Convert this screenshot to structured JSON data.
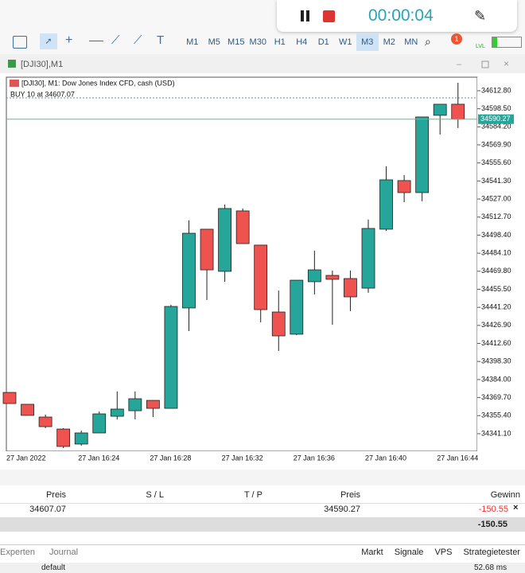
{
  "recorder": {
    "timer": "00:00:04"
  },
  "toolbar": {
    "timeframes": [
      "M1",
      "M5",
      "M15",
      "M30",
      "H1",
      "H4",
      "D1",
      "W1",
      "M3",
      "M2",
      "MN"
    ],
    "active_timeframe": "M3",
    "notifications": 1,
    "level": "LVL"
  },
  "window": {
    "title": "[DJI30],M1"
  },
  "chart_data": {
    "type": "candlestick",
    "info_line": "[DJI30], M1:  Dow Jones Index CFD, cash (USD)",
    "trade_label": "BUY 10 at 34607.07",
    "categories": [
      "27 Jan 2022",
      null,
      null,
      null,
      "27 Jan 16:24",
      null,
      null,
      null,
      "27 Jan 16:28",
      null,
      null,
      null,
      "27 Jan 16:32",
      null,
      null,
      null,
      "27 Jan 16:36",
      null,
      null,
      null,
      "27 Jan 16:40",
      null,
      null,
      null,
      "27 Jan 16:44",
      null
    ],
    "open": [
      34373.8,
      34364.4,
      34354.3,
      34344.8,
      34332.9,
      34341.7,
      34354.9,
      34359.3,
      34367.5,
      34361.2,
      34440.7,
      34503.1,
      34469.7,
      34517.6,
      34490.5,
      34437.5,
      34419.9,
      34461.5,
      34466.5,
      34464.0,
      34456.4,
      34503.1,
      34541.6,
      34532.1,
      34593.3,
      34602.1
    ],
    "high": [
      34373.8,
      34364.4,
      34356.2,
      34345.5,
      34343.6,
      34358.7,
      34374.5,
      34374.5,
      34367.5,
      34443.2,
      34510.0,
      34503.1,
      34522.6,
      34519.5,
      34490.5,
      34454.5,
      34462.7,
      34486.1,
      34470.3,
      34470.3,
      34510.7,
      34552.9,
      34546.0,
      34592.0,
      34602.1,
      34619.1
    ],
    "low": [
      34365.0,
      34355.6,
      34345.5,
      34329.7,
      34331.6,
      34341.7,
      34352.4,
      34352.4,
      34354.3,
      34361.2,
      34422.4,
      34447.0,
      34461.5,
      34491.7,
      34429.3,
      34406.6,
      34419.2,
      34451.4,
      34427.4,
      34438.2,
      34452.7,
      34501.8,
      34524.5,
      34525.2,
      34578.1,
      34583.2
    ],
    "close": [
      34365.0,
      34355.6,
      34346.7,
      34331.0,
      34341.7,
      34356.8,
      34360.6,
      34368.8,
      34361.2,
      34441.9,
      34499.9,
      34470.9,
      34519.5,
      34491.7,
      34439.4,
      34418.6,
      34462.7,
      34470.9,
      34463.4,
      34449.5,
      34503.7,
      34542.2,
      34532.1,
      34592.0,
      34602.1,
      34590.27
    ],
    "up_color": "#26a69a",
    "down_color": "#ef5350",
    "order_price": 34607.07,
    "current_price": 34590.27,
    "ylim": [
      34327.2,
      34623.5
    ],
    "yticks": [
      {
        "value": 34612.8,
        "label": "34612.80"
      },
      {
        "value": 34598.5,
        "label": "34598.50"
      },
      {
        "value": 34584.2,
        "label": "34584.20"
      },
      {
        "value": 34569.9,
        "label": "34569.90"
      },
      {
        "value": 34555.6,
        "label": "34555.60"
      },
      {
        "value": 34541.3,
        "label": "34541.30"
      },
      {
        "value": 34527,
        "label": "34527.00"
      },
      {
        "value": 34512.7,
        "label": "34512.70"
      },
      {
        "value": 34498.4,
        "label": "34498.40"
      },
      {
        "value": 34484.1,
        "label": "34484.10"
      },
      {
        "value": 34469.8,
        "label": "34469.80"
      },
      {
        "value": 34455.5,
        "label": "34455.50"
      },
      {
        "value": 34441.2,
        "label": "34441.20"
      },
      {
        "value": 34426.9,
        "label": "34426.90"
      },
      {
        "value": 34412.6,
        "label": "34412.60"
      },
      {
        "value": 34398.3,
        "label": "34398.30"
      },
      {
        "value": 34384,
        "label": "34384.00"
      },
      {
        "value": 34369.7,
        "label": "34369.70"
      },
      {
        "value": 34355.4,
        "label": "34355.40"
      },
      {
        "value": 34341.1,
        "label": "34341.10"
      }
    ]
  },
  "positions": {
    "columns": [
      "Preis",
      "S / L",
      "T / P",
      "Preis",
      "Gewinn"
    ],
    "rows": [
      [
        34607.07,
        null,
        null,
        34590.27,
        -150.55
      ]
    ],
    "total": -150.55
  },
  "tabs": {
    "left": [
      "Experten",
      "Journal"
    ],
    "right": [
      "Markt",
      "Signale",
      "VPS",
      "Strategietester"
    ]
  },
  "status": [
    "default",
    "52.68 ms"
  ]
}
